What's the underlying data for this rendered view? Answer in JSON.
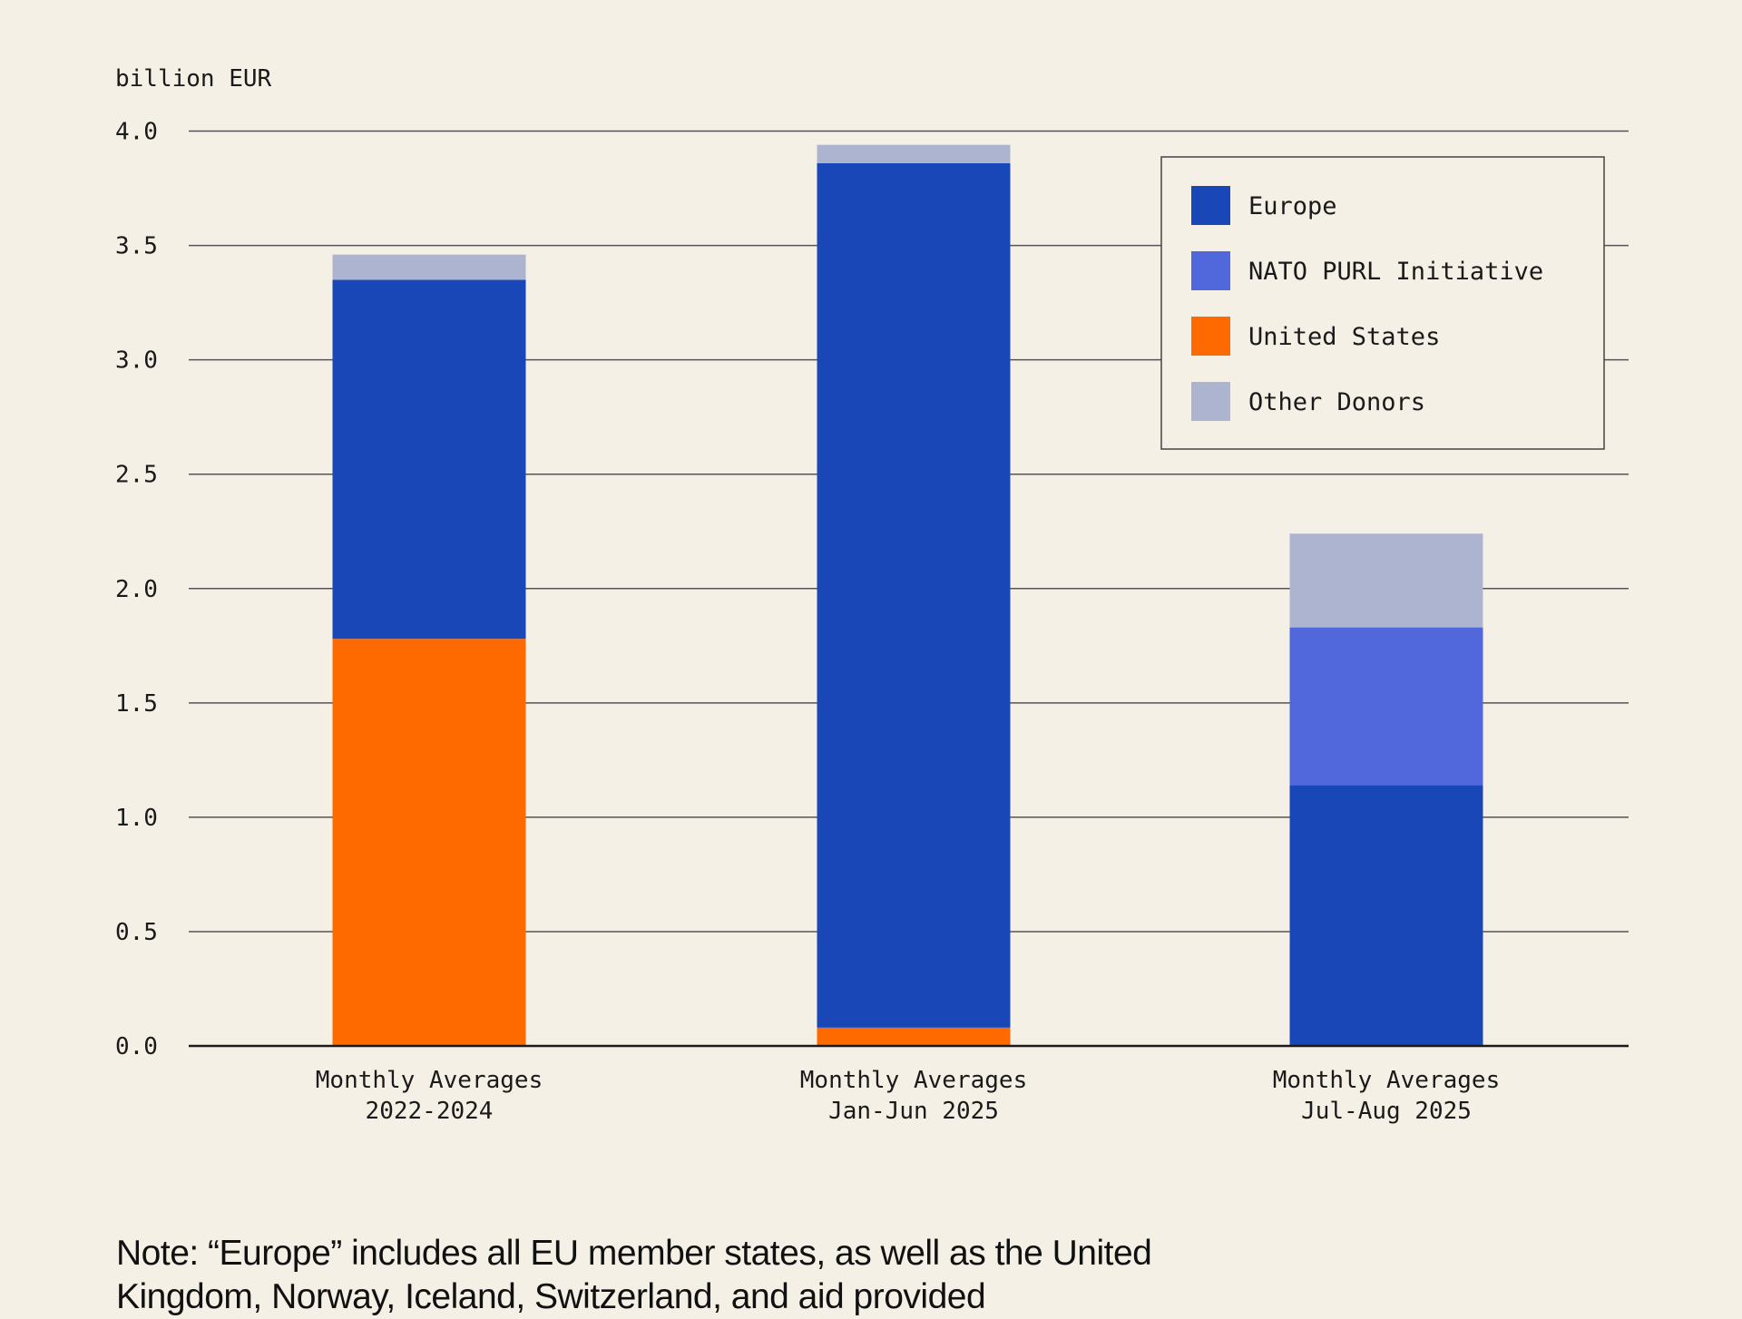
{
  "chart_data": {
    "type": "bar",
    "stacked": true,
    "ylabel": "billion EUR",
    "ylim": [
      0,
      4.0
    ],
    "yticks": [
      "0.0",
      "0.5",
      "1.0",
      "1.5",
      "2.0",
      "2.5",
      "3.0",
      "3.5",
      "4.0"
    ],
    "grid": true,
    "legend_position": "top-right",
    "categories": [
      [
        "Monthly Averages",
        "2022-2024"
      ],
      [
        "Monthly Averages",
        "Jan-Jun 2025"
      ],
      [
        "Monthly Averages",
        "Jul-Aug 2025"
      ]
    ],
    "series": [
      {
        "name": "United States",
        "color": "#ff6a00",
        "values": [
          1.78,
          0.08,
          0
        ]
      },
      {
        "name": "Europe",
        "color": "#1a47b8",
        "values": [
          1.57,
          3.78,
          1.14
        ]
      },
      {
        "name": "NATO PURL Initiative",
        "color": "#5068dc",
        "values": [
          0,
          0,
          0.69
        ]
      },
      {
        "name": "Other Donors",
        "color": "#adb4cf",
        "values": [
          0.11,
          0.08,
          0.41
        ]
      }
    ],
    "legend_order": [
      "Europe",
      "NATO PURL Initiative",
      "United States",
      "Other Donors"
    ]
  },
  "note": "Note: “Europe” includes all EU member states, as well as the United Kingdom, Norway, Iceland, Switzerland, and aid provided"
}
